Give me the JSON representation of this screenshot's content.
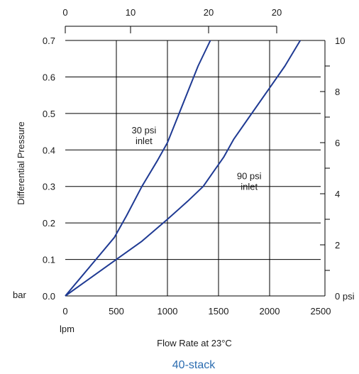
{
  "chart_data": {
    "type": "line",
    "title": "40-stack",
    "xlabel": "Flow Rate at 23°C",
    "ylabel": "Differential Pressure",
    "x_unit": "lpm",
    "y_unit": "bar",
    "y2_unit": "psi",
    "xlim": [
      0,
      2500
    ],
    "ylim": [
      0,
      0.7
    ],
    "x_ticks": [
      0,
      500,
      1000,
      1500,
      2000,
      2500
    ],
    "x_tick_labels": [
      "0",
      "500",
      "1000",
      "1500",
      "2000",
      "2500"
    ],
    "y_ticks": [
      0.0,
      0.1,
      0.2,
      0.3,
      0.4,
      0.5,
      0.6,
      0.7
    ],
    "y_tick_labels": [
      "0.0",
      "0.1",
      "0.2",
      "0.3",
      "0.4",
      "0.5",
      "0.6",
      "0.7"
    ],
    "y2_ticks": [
      0,
      2,
      4,
      6,
      8,
      10
    ],
    "y2_tick_labels": [
      "0 psi",
      "2",
      "4",
      "6",
      "8",
      "10"
    ],
    "top_axis_tick_labels": [
      "0",
      "10",
      "20",
      "20"
    ],
    "grid": true,
    "series": [
      {
        "name": "30 psi inlet",
        "color": "#1f3a93",
        "x": [
          0,
          150,
          300,
          480,
          600,
          750,
          900,
          1000,
          1100,
          1200,
          1300,
          1420
        ],
        "y": [
          0.0,
          0.05,
          0.1,
          0.16,
          0.22,
          0.3,
          0.37,
          0.42,
          0.49,
          0.56,
          0.63,
          0.7
        ]
      },
      {
        "name": "90 psi inlet",
        "color": "#1f3a93",
        "x": [
          0,
          250,
          500,
          750,
          1000,
          1200,
          1350,
          1450,
          1550,
          1650,
          1800,
          2000,
          2150,
          2300
        ],
        "y": [
          0.0,
          0.05,
          0.1,
          0.15,
          0.21,
          0.26,
          0.3,
          0.34,
          0.38,
          0.43,
          0.49,
          0.57,
          0.63,
          0.7
        ]
      }
    ],
    "annotations": [
      {
        "lines": [
          "30 psi",
          "inlet"
        ],
        "x": 770,
        "y": 0.445
      },
      {
        "lines": [
          "90 psi",
          "inlet"
        ],
        "x": 1800,
        "y": 0.32
      }
    ]
  }
}
